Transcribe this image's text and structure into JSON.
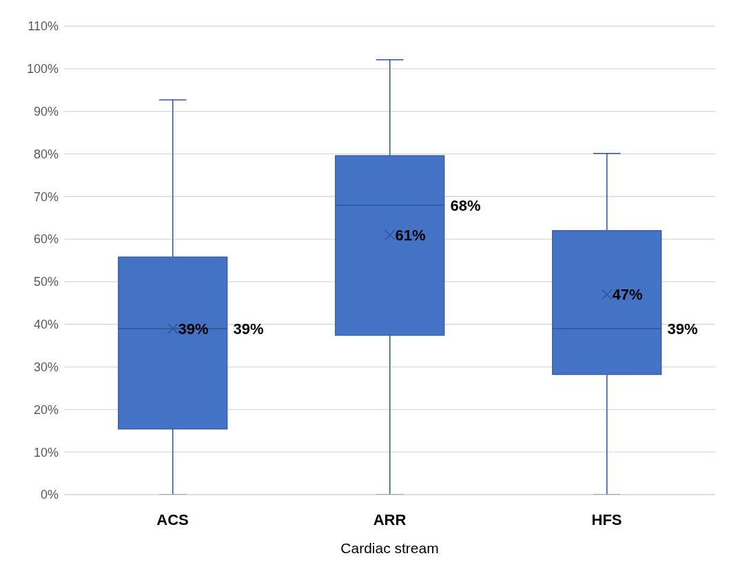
{
  "chart_data": {
    "type": "box",
    "xlabel": "Cardiac stream",
    "categories": [
      "ACS",
      "ARR",
      "HFS"
    ],
    "color": "#4472c4",
    "boxes": [
      {
        "low": 0,
        "q1": 15.4,
        "median": 39,
        "q3": 55.8,
        "high": 92.7,
        "mean": 39
      },
      {
        "low": 0,
        "q1": 37.4,
        "median": 68,
        "q3": 79.6,
        "high": 102.1,
        "mean": 61
      },
      {
        "low": 0,
        "q1": 28.2,
        "median": 39,
        "q3": 62,
        "high": 80.1,
        "mean": 47
      }
    ],
    "ylim": [
      0,
      110
    ],
    "yticks": [
      {
        "value": 0,
        "label": "0%"
      },
      {
        "value": 10,
        "label": "10%"
      },
      {
        "value": 20,
        "label": "20%"
      },
      {
        "value": 30,
        "label": "30%"
      },
      {
        "value": 40,
        "label": "40%"
      },
      {
        "value": 50,
        "label": "50%"
      },
      {
        "value": 60,
        "label": "60%"
      },
      {
        "value": 70,
        "label": "70%"
      },
      {
        "value": 80,
        "label": "80%"
      },
      {
        "value": 90,
        "label": "90%"
      },
      {
        "value": 100,
        "label": "100%"
      },
      {
        "value": 110,
        "label": "110%"
      }
    ],
    "grid": "y",
    "annotations": [
      "39%",
      "39%",
      "61%",
      "68%",
      "47%",
      "39%"
    ]
  }
}
